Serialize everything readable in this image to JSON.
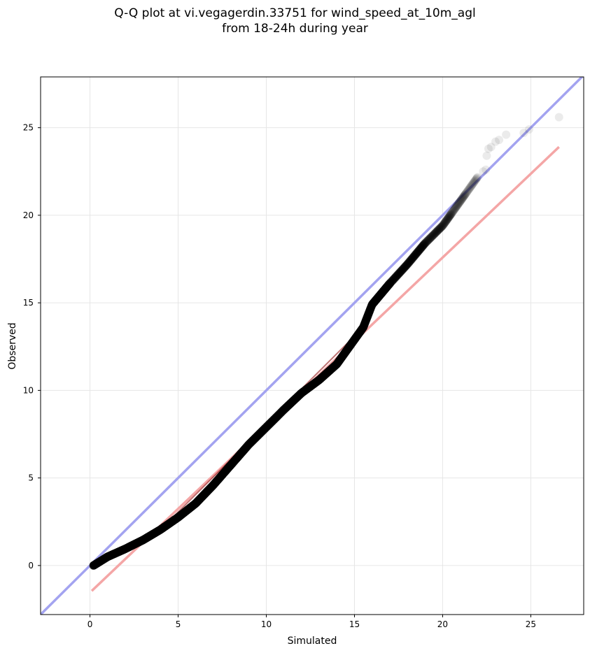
{
  "chart_data": {
    "type": "scatter",
    "title": "Q-Q plot at vi.vegagerdin.33751 for wind_speed_at_10m_agl",
    "subtitle": "from 18-24h during year",
    "xlabel": "Simulated",
    "ylabel": "Observed",
    "xlim": [
      -2.8,
      28
    ],
    "ylim": [
      -2.8,
      27.9
    ],
    "xticks": [
      "0",
      "5",
      "10",
      "15",
      "20",
      "25"
    ],
    "yticks": [
      "0",
      "5",
      "10",
      "15",
      "20",
      "25"
    ],
    "grid": true,
    "colors": {
      "points": "#000000",
      "identity_line": "#a3a3f0",
      "fit_line": "#f4a6a6",
      "fit_line_overlay": "#8b0000",
      "frame": "#000000",
      "grid": "#e6e6e6"
    },
    "reference_lines": [
      {
        "kind": "identity",
        "x": [
          -2.8,
          28
        ],
        "y": [
          -2.8,
          28
        ]
      },
      {
        "kind": "fit",
        "x": [
          0.1,
          26.6
        ],
        "y": [
          -1.45,
          23.9
        ]
      }
    ],
    "quantile_curve": {
      "x": [
        0.2,
        1,
        2,
        3,
        4,
        5,
        6,
        7,
        8,
        9,
        10,
        11,
        12,
        13,
        14,
        15,
        15.5,
        16,
        17,
        18,
        19,
        20,
        21,
        22
      ],
      "y": [
        0.0,
        0.5,
        0.95,
        1.45,
        2.05,
        2.75,
        3.55,
        4.6,
        5.75,
        6.9,
        7.9,
        8.9,
        9.85,
        10.6,
        11.5,
        12.9,
        13.6,
        14.9,
        16.1,
        17.2,
        18.4,
        19.4,
        20.8,
        22.2
      ]
    },
    "tail_points": {
      "x": [
        22.3,
        22.45,
        22.5,
        22.6,
        22.75,
        23.0,
        23.2,
        23.6,
        24.6,
        24.9,
        26.6
      ],
      "y": [
        22.5,
        22.6,
        23.4,
        23.8,
        23.9,
        24.2,
        24.3,
        24.6,
        24.7,
        24.9,
        25.6
      ]
    }
  }
}
